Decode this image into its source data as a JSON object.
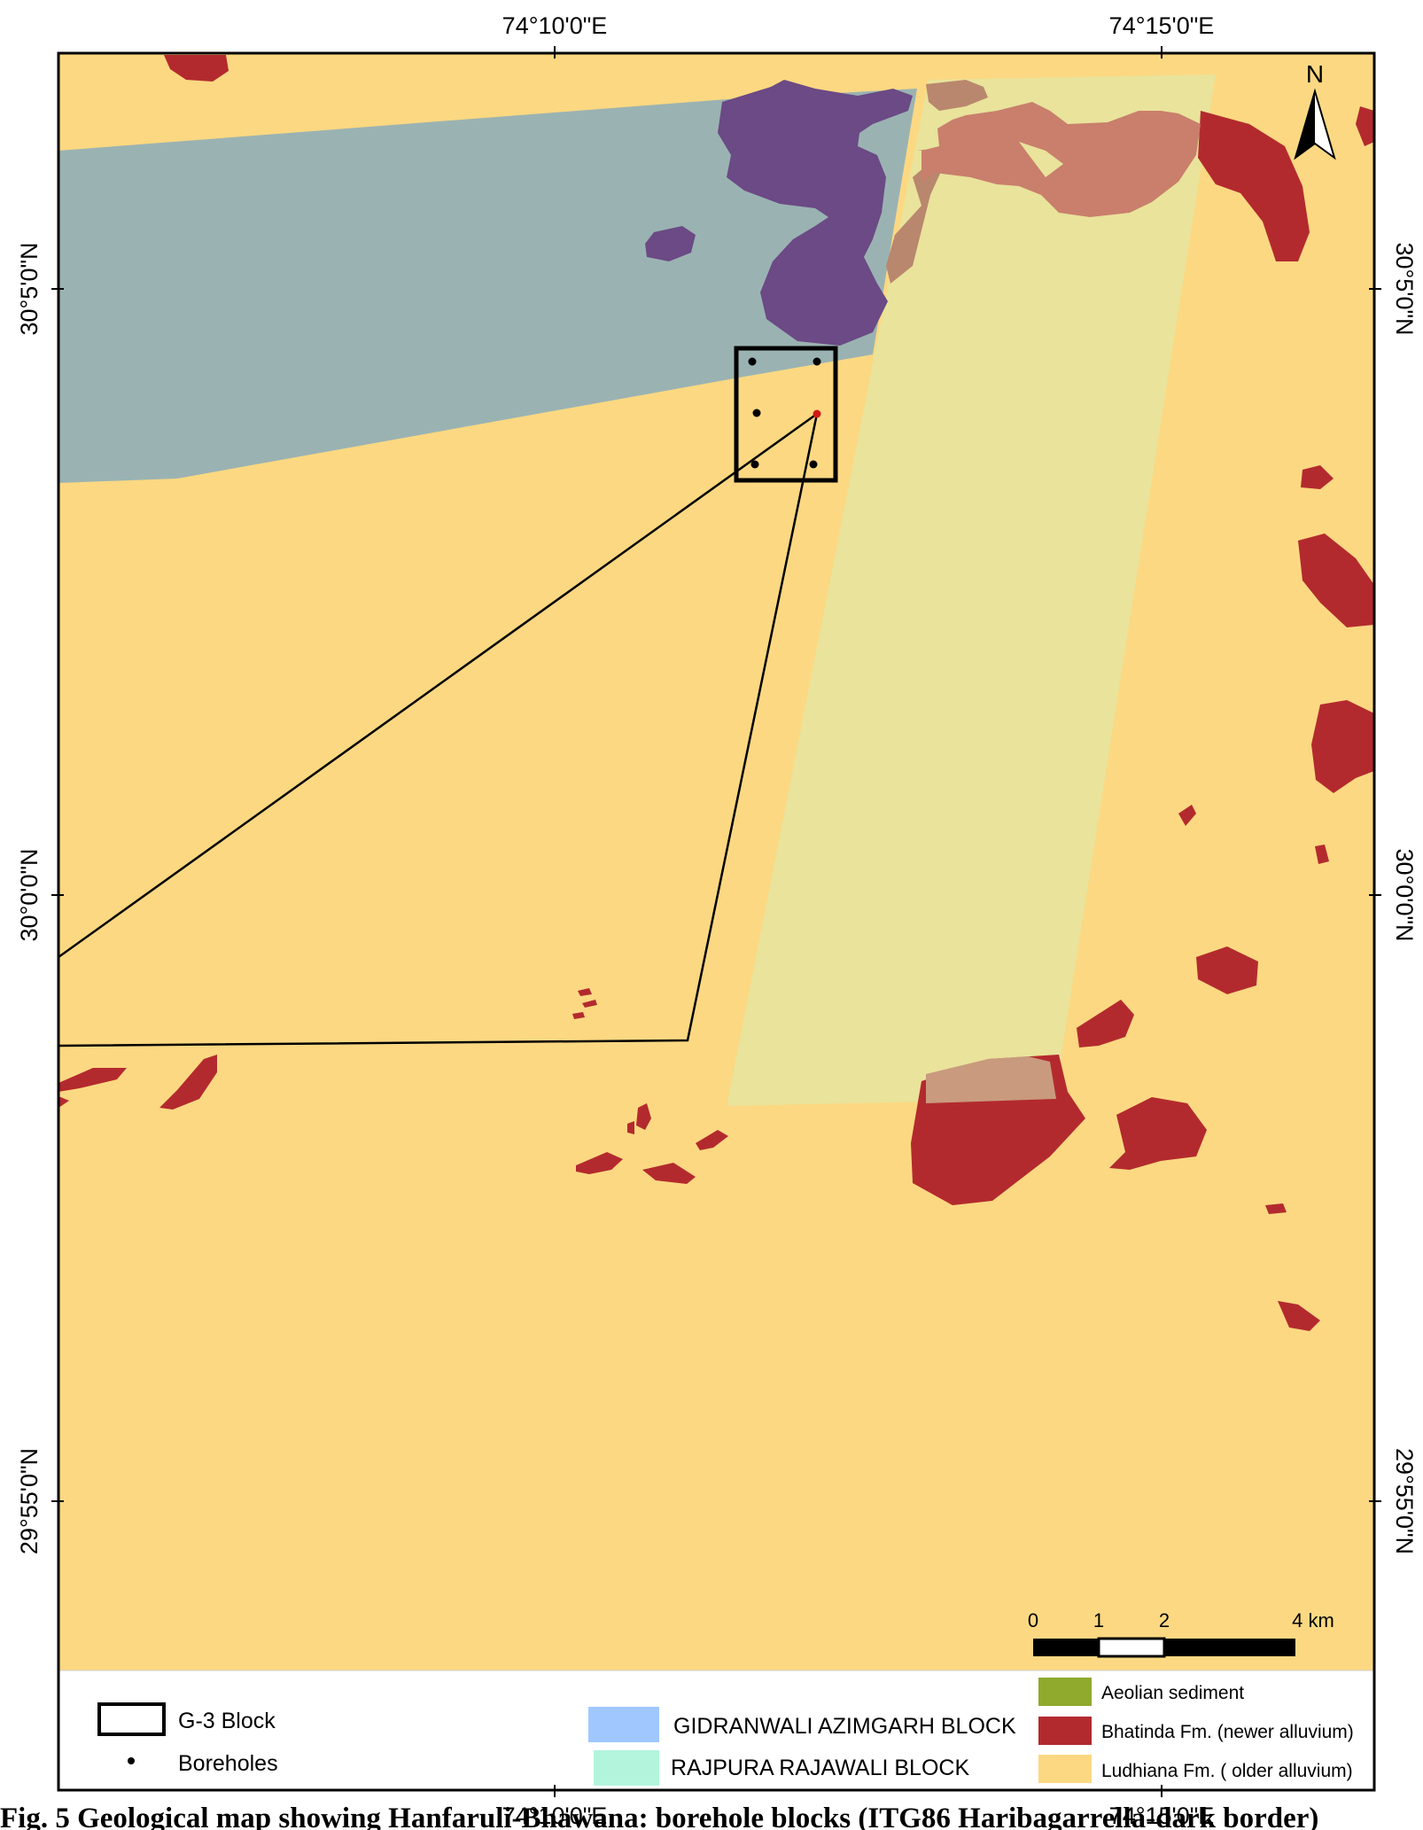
{
  "map": {
    "axis": {
      "top_labels": [
        "74°10'0\"E",
        "74°15'0\"E"
      ],
      "bottom_labels": [
        "74°10'0\"E",
        "74°15'0\"E"
      ],
      "left_labels": [
        "30°5'0\"N",
        "30°0'0\"N",
        "29°55'0\"N"
      ],
      "right_labels": [
        "30°5'0\"N",
        "30°0'0\"N",
        "29°55'0\"N"
      ]
    },
    "north_label": "N",
    "scale": {
      "ticks": [
        "0",
        "1",
        "2",
        "4 km"
      ]
    },
    "colors": {
      "ludhiana": "#fcd882",
      "bhatinda": "#b32a2e",
      "aeolian": "#8faa2d",
      "gidranwali": "#a0c8ff",
      "rajpura": "#b3f5dc"
    }
  },
  "legend": {
    "g3_block": "G-3 Block",
    "boreholes": "Boreholes",
    "gidranwali": "GIDRANWALI AZIMGARH BLOCK",
    "rajpura": "RAJPURA RAJAWALI BLOCK",
    "aeolian": "Aeolian sediment",
    "bhatinda": "Bhatinda Fm. (newer alluvium)",
    "ludhiana": "Ludhiana Fm. ( older alluvium)"
  },
  "caption": "Fig. 5 Geological map showing Hanfaruli-Bhawana: borehole blocks (ITG86 Haribagarrella-dark border)"
}
